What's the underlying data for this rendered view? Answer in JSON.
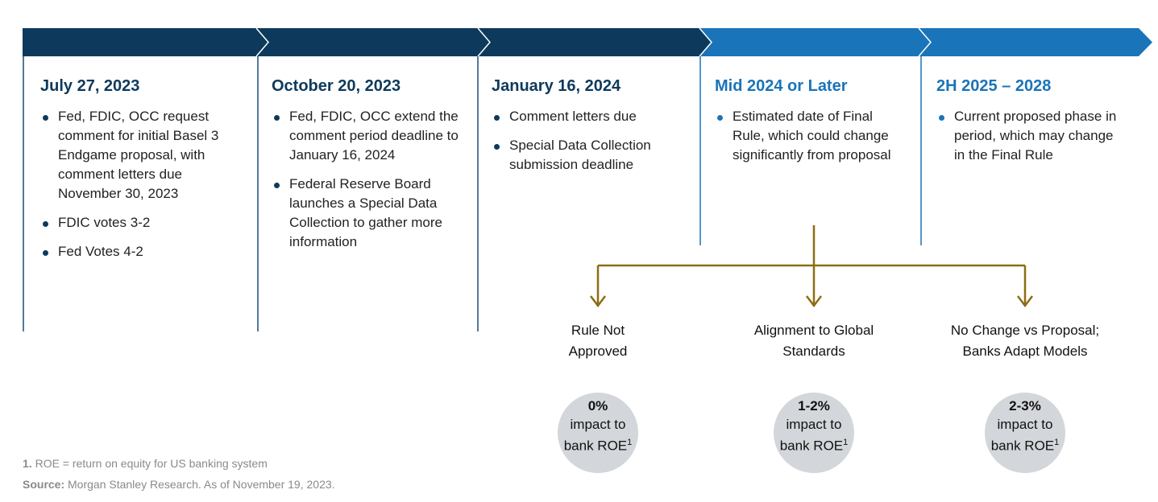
{
  "columns": [
    {
      "title": "July 27, 2023",
      "bullets": [
        "Fed, FDIC, OCC request comment for initial Basel 3 Endgame proposal, with comment letters due November 30, 2023",
        "FDIC votes 3-2",
        "Fed Votes 4-2"
      ]
    },
    {
      "title": "October 20, 2023",
      "bullets": [
        "Fed, FDIC, OCC extend the comment period deadline to January 16, 2024",
        "Federal Reserve Board launches a Special Data Collection to gather more information"
      ]
    },
    {
      "title": "January 16, 2024",
      "bullets": [
        "Comment letters due",
        "Special Data Collection submission deadline"
      ]
    },
    {
      "title": "Mid 2024 or Later",
      "bullets": [
        "Estimated date of Final Rule, which could change significantly from proposal"
      ]
    },
    {
      "title": "2H 2025 – 2028",
      "bullets": [
        "Current proposed phase in period, which may change in the Final Rule"
      ]
    }
  ],
  "outcomes": [
    {
      "label_line1": "Rule Not",
      "label_line2": "Approved",
      "pct": "0%",
      "impact_line1": "impact to",
      "impact_line2": "bank ROE",
      "note_ref": "1"
    },
    {
      "label_line1": "Alignment to Global",
      "label_line2": "Standards",
      "pct": "1-2%",
      "impact_line1": "impact to",
      "impact_line2": "bank ROE",
      "note_ref": "1"
    },
    {
      "label_line1": "No Change vs Proposal;",
      "label_line2": "Banks Adapt Models",
      "pct": "2-3%",
      "impact_line1": "impact to",
      "impact_line2": "bank ROE",
      "note_ref": "1"
    }
  ],
  "footnote": {
    "marker": "1.",
    "text": "ROE = return on equity for US banking system"
  },
  "source": {
    "label": "Source:",
    "text": "Morgan Stanley Research. As of November 19, 2023."
  }
}
